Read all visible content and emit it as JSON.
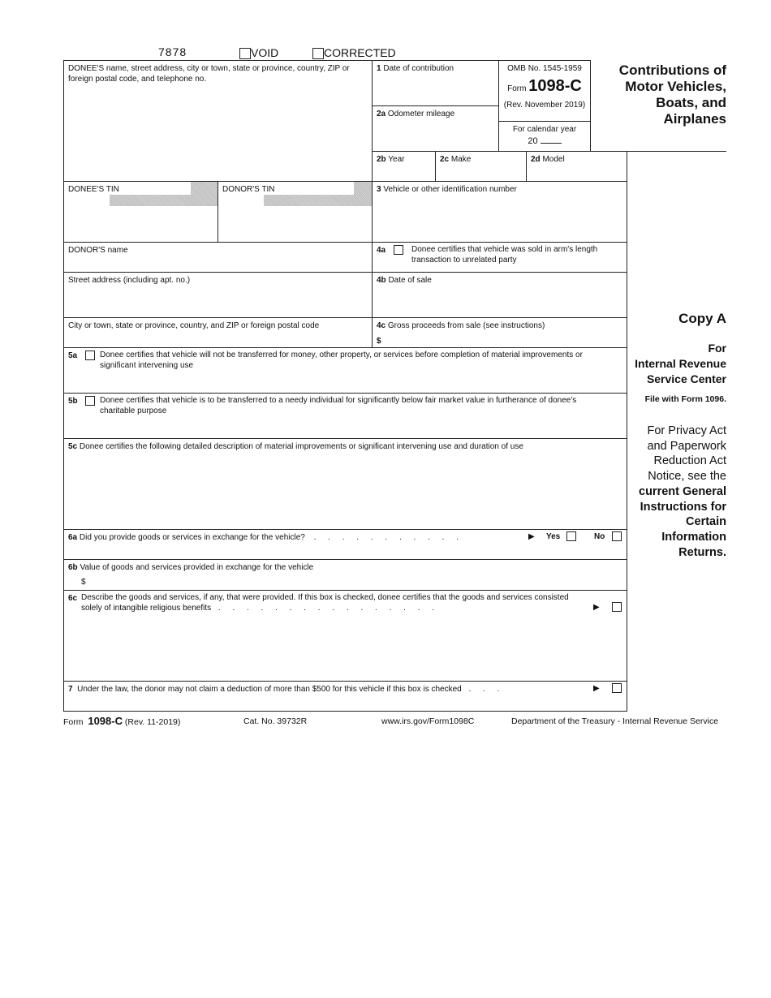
{
  "header": {
    "form_code": "7878",
    "void_label": "VOID",
    "corrected_label": "CORRECTED"
  },
  "boxes": {
    "donee_name": "DONEE'S name, street address, city or town, state or province, country, ZIP or foreign postal code, and telephone no.",
    "b1_num": "1",
    "b1": "Date of contribution",
    "omb": "OMB No. 1545-1959",
    "form_word": "Form",
    "form_number": "1098-C",
    "rev": "(Rev. November 2019)",
    "calendar_year": "For calendar year",
    "year_prefix": "20",
    "b2a_num": "2a",
    "b2a": "Odometer mileage",
    "b2b_num": "2b",
    "b2b": "Year",
    "b2c_num": "2c",
    "b2c": "Make",
    "b2d_num": "2d",
    "b2d": "Model",
    "donee_tin": "DONEE'S TIN",
    "donor_tin": "DONOR'S TIN",
    "b3_num": "3",
    "b3": "Vehicle or other identification number",
    "donor_name": "DONOR'S name",
    "b4a_num": "4a",
    "b4a": "Donee certifies that vehicle was sold in arm's length transaction to unrelated party",
    "street": "Street address (including apt. no.)",
    "b4b_num": "4b",
    "b4b": "Date of sale",
    "city": "City or town, state or province, country, and ZIP or foreign postal code",
    "b4c_num": "4c",
    "b4c": "Gross proceeds from sale (see instructions)",
    "dollar": "$",
    "b5a_num": "5a",
    "b5a": "Donee certifies that vehicle will not be transferred for money, other property, or services before completion of material improvements or significant intervening use",
    "b5b_num": "5b",
    "b5b": "Donee certifies that vehicle is to be transferred to a needy individual for significantly below fair market value in furtherance of donee's charitable purpose",
    "b5c_num": "5c",
    "b5c": "Donee certifies the following detailed description of material improvements or significant intervening use and duration of use",
    "b6a_num": "6a",
    "b6a": "Did you provide goods or services in exchange for the vehicle?",
    "yes": "Yes",
    "no": "No",
    "b6b_num": "6b",
    "b6b": "Value of goods and services provided in exchange for the vehicle",
    "b6c_num": "6c",
    "b6c": "Describe the goods and services, if any, that were provided. If this box is checked, donee certifies that the goods and services consisted solely of intangible religious benefits",
    "b7_num": "7",
    "b7": "Under the law, the donor may not claim a deduction of more than $500 for this vehicle if this box is checked",
    "arrow": "▶"
  },
  "side": {
    "title": "Contributions of Motor Vehicles, Boats, and Airplanes",
    "copy": "Copy A",
    "for": "For",
    "irs": "Internal Revenue Service Center",
    "file_with": "File with Form 1096.",
    "privacy_plain": "For Privacy Act and Paperwork Reduction Act Notice, see the",
    "privacy_bold": "current General Instructions for Certain Information Returns."
  },
  "footer": {
    "form_word": "Form",
    "form_number": "1098-C",
    "rev": "(Rev. 11-2019)",
    "cat": "Cat. No. 39732R",
    "url": "www.irs.gov/Form1098C",
    "dept": "Department of the Treasury - Internal Revenue Service"
  }
}
